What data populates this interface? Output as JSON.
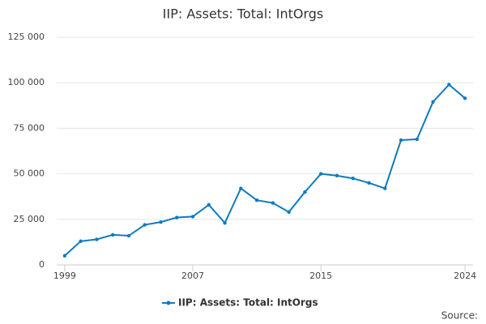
{
  "chart_data": {
    "type": "line",
    "title": "IIP: Assets: Total: IntOrgs",
    "x": [
      1999,
      2000,
      2001,
      2002,
      2003,
      2004,
      2005,
      2006,
      2007,
      2008,
      2009,
      2010,
      2011,
      2012,
      2013,
      2014,
      2015,
      2016,
      2017,
      2018,
      2019,
      2020,
      2021,
      2022,
      2023,
      2024
    ],
    "series": [
      {
        "name": "IIP: Assets: Total: IntOrgs",
        "color": "#0e7bbf",
        "values": [
          5000,
          13000,
          14000,
          16500,
          16000,
          22000,
          23500,
          26000,
          26500,
          33000,
          23000,
          42000,
          35500,
          34000,
          29000,
          40000,
          50000,
          49000,
          47500,
          45000,
          42000,
          68500,
          69000,
          89500,
          99000,
          91500
        ]
      }
    ],
    "xlim": [
      1998.5,
      2024.5
    ],
    "xticks": [
      1999,
      2007,
      2015,
      2024
    ],
    "ylim": [
      0,
      125000
    ],
    "yticks": [
      0,
      {
        "value": 25000,
        "label": "25 000"
      },
      {
        "value": 50000,
        "label": "50 000"
      },
      {
        "value": 75000,
        "label": "75 000"
      },
      {
        "value": 100000,
        "label": "100 000"
      },
      {
        "value": 125000,
        "label": "125 000"
      }
    ],
    "grid": true,
    "legend": "bottom",
    "source": "Source:"
  }
}
